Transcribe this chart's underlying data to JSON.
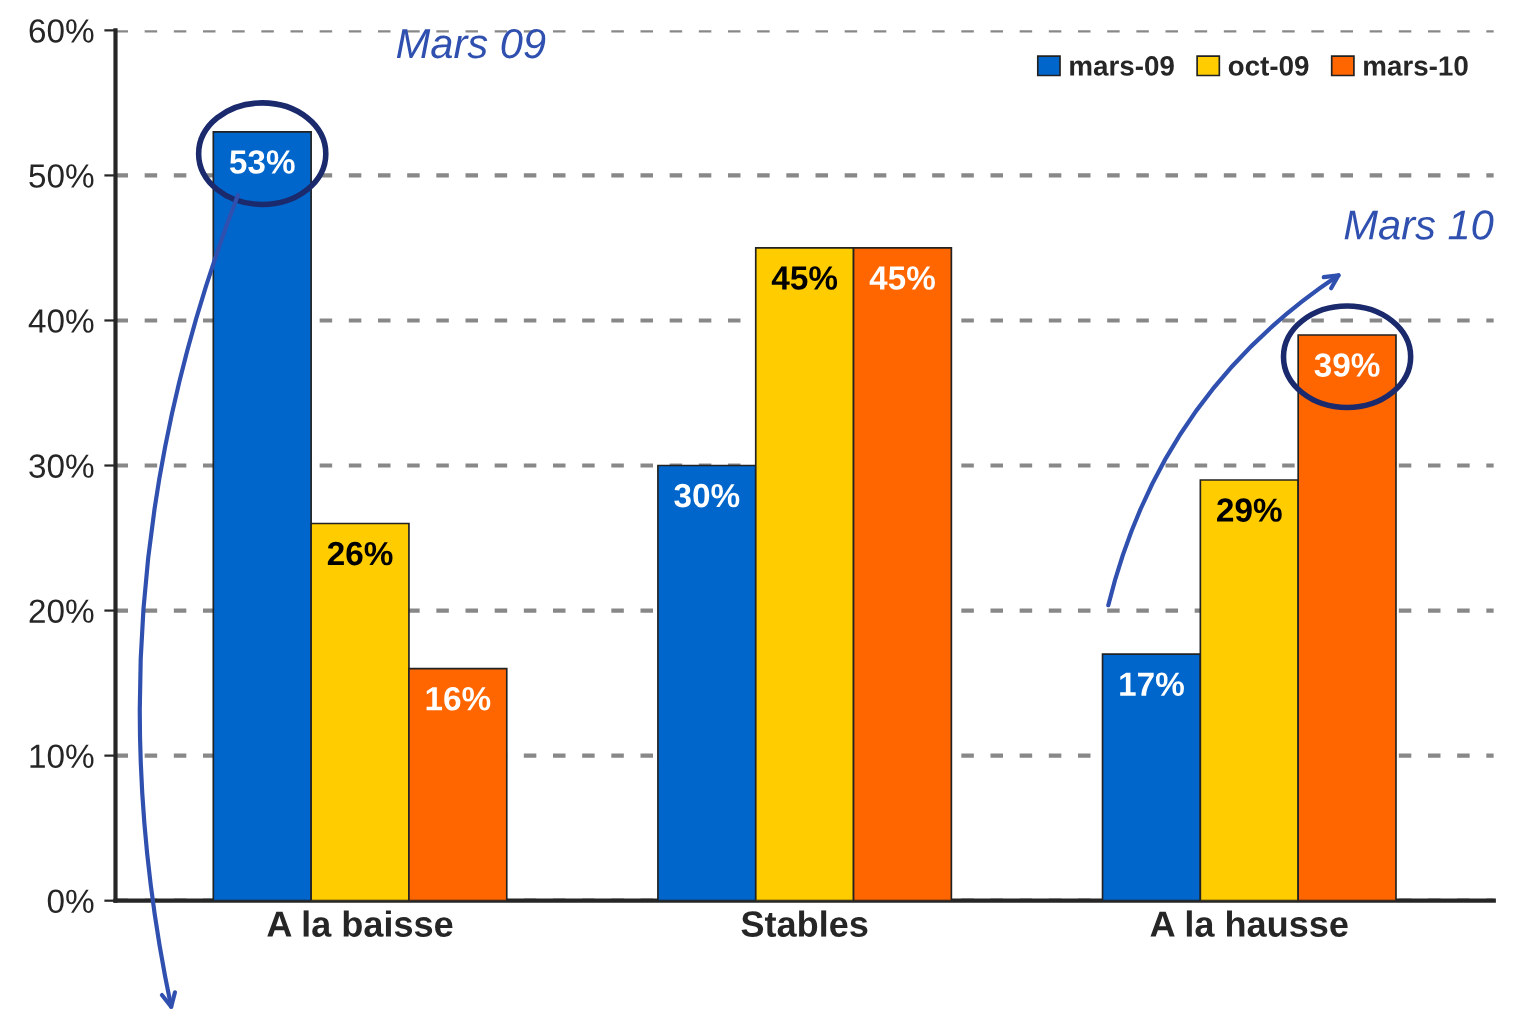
{
  "chart_data": {
    "type": "bar",
    "categories": [
      "A la baisse",
      "Stables",
      "A la hausse"
    ],
    "series": [
      {
        "name": "mars-09",
        "color": "#0066cc",
        "values": [
          53,
          30,
          17
        ],
        "value_labels": [
          "53%",
          "30%",
          "17%"
        ]
      },
      {
        "name": "oct-09",
        "color": "#ffcc00",
        "values": [
          26,
          45,
          29
        ],
        "value_labels": [
          "26%",
          "45%",
          "29%"
        ]
      },
      {
        "name": "mars-10",
        "color": "#ff6600",
        "values": [
          16,
          45,
          39
        ],
        "value_labels": [
          "16%",
          "45%",
          "39%"
        ]
      }
    ],
    "ylim": [
      0,
      60
    ],
    "yticks": [
      {
        "value": 0,
        "label": "0%"
      },
      {
        "value": 10,
        "label": "10%"
      },
      {
        "value": 20,
        "label": "20%"
      },
      {
        "value": 30,
        "label": "30%"
      },
      {
        "value": 40,
        "label": "40%"
      },
      {
        "value": 50,
        "label": "50%"
      },
      {
        "value": 60,
        "label": "60%"
      }
    ],
    "grid": "y",
    "legend": "top right",
    "annotations": [
      "Mars 09",
      "Mars 10"
    ]
  }
}
